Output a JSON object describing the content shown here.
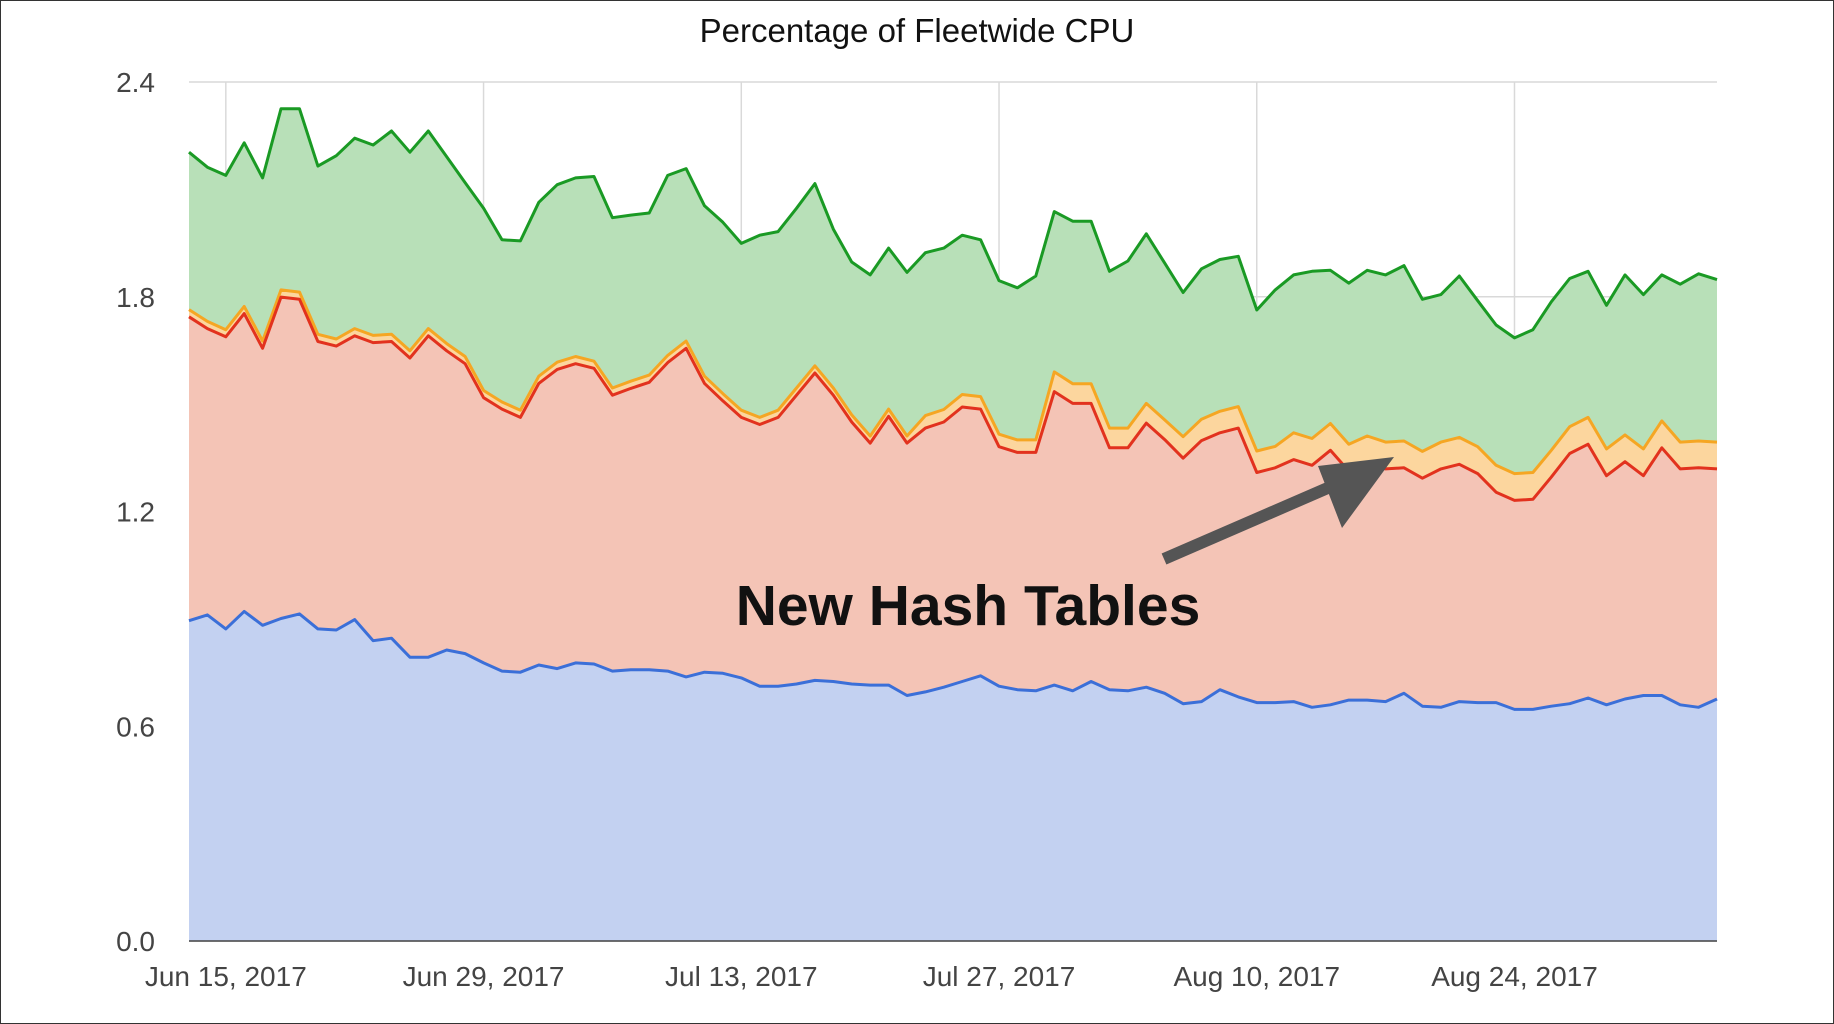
{
  "chart_data": {
    "type": "area",
    "title": "Percentage of Fleetwide CPU",
    "xlabel": "",
    "ylabel": "",
    "ylim": [
      0,
      2.4
    ],
    "xlim": [
      "2017-06-13",
      "2017-09-04"
    ],
    "grid": true,
    "legend": "none",
    "y_ticks": [
      "0.0",
      "0.6",
      "1.2",
      "1.8",
      "2.4"
    ],
    "x_ticks": [
      {
        "date": "2017-06-15",
        "label": "Jun 15, 2017"
      },
      {
        "date": "2017-06-29",
        "label": "Jun 29, 2017"
      },
      {
        "date": "2017-07-13",
        "label": "Jul 13, 2017"
      },
      {
        "date": "2017-07-27",
        "label": "Jul 27, 2017"
      },
      {
        "date": "2017-08-10",
        "label": "Aug 10, 2017"
      },
      {
        "date": "2017-08-24",
        "label": "Aug 24, 2017"
      }
    ],
    "x": [
      "2017-06-13",
      "2017-06-14",
      "2017-06-15",
      "2017-06-16",
      "2017-06-17",
      "2017-06-18",
      "2017-06-19",
      "2017-06-20",
      "2017-06-21",
      "2017-06-22",
      "2017-06-23",
      "2017-06-24",
      "2017-06-25",
      "2017-06-26",
      "2017-06-27",
      "2017-06-28",
      "2017-06-29",
      "2017-06-30",
      "2017-07-01",
      "2017-07-02",
      "2017-07-03",
      "2017-07-04",
      "2017-07-05",
      "2017-07-06",
      "2017-07-07",
      "2017-07-08",
      "2017-07-09",
      "2017-07-10",
      "2017-07-11",
      "2017-07-12",
      "2017-07-13",
      "2017-07-14",
      "2017-07-15",
      "2017-07-16",
      "2017-07-17",
      "2017-07-18",
      "2017-07-19",
      "2017-07-20",
      "2017-07-21",
      "2017-07-22",
      "2017-07-23",
      "2017-07-24",
      "2017-07-25",
      "2017-07-26",
      "2017-07-27",
      "2017-07-28",
      "2017-07-29",
      "2017-07-30",
      "2017-07-31",
      "2017-08-01",
      "2017-08-02",
      "2017-08-03",
      "2017-08-04",
      "2017-08-05",
      "2017-08-06",
      "2017-08-07",
      "2017-08-08",
      "2017-08-09",
      "2017-08-10",
      "2017-08-11",
      "2017-08-12",
      "2017-08-13",
      "2017-08-14",
      "2017-08-15",
      "2017-08-16",
      "2017-08-17",
      "2017-08-18",
      "2017-08-19",
      "2017-08-20",
      "2017-08-21",
      "2017-08-22",
      "2017-08-23",
      "2017-08-24",
      "2017-08-25",
      "2017-08-26",
      "2017-08-27",
      "2017-08-28",
      "2017-08-29",
      "2017-08-30",
      "2017-08-31",
      "2017-09-01",
      "2017-09-02",
      "2017-09-03",
      "2017-09-04"
    ],
    "series": [
      {
        "line_color": "#1a9a24",
        "fill_color": "#b8e0b8",
        "values": [
          2.204,
          2.162,
          2.139,
          2.23,
          2.132,
          2.325,
          2.325,
          2.165,
          2.194,
          2.243,
          2.224,
          2.263,
          2.204,
          2.263,
          2.191,
          2.119,
          2.047,
          1.959,
          1.956,
          2.064,
          2.113,
          2.132,
          2.136,
          2.021,
          2.028,
          2.034,
          2.139,
          2.158,
          2.054,
          2.008,
          1.949,
          1.972,
          1.982,
          2.047,
          2.116,
          1.989,
          1.897,
          1.861,
          1.936,
          1.868,
          1.923,
          1.936,
          1.972,
          1.959,
          1.845,
          1.825,
          1.858,
          2.038,
          2.011,
          2.011,
          1.871,
          1.9,
          1.976,
          1.894,
          1.812,
          1.878,
          1.904,
          1.913,
          1.763,
          1.819,
          1.861,
          1.871,
          1.874,
          1.838,
          1.874,
          1.861,
          1.887,
          1.793,
          1.806,
          1.858,
          1.789,
          1.721,
          1.685,
          1.708,
          1.786,
          1.851,
          1.871,
          1.776,
          1.861,
          1.806,
          1.861,
          1.835,
          1.864,
          1.848
        ]
      },
      {
        "line_color": "#f5a623",
        "fill_color": "#fcd69e",
        "values": [
          1.764,
          1.731,
          1.708,
          1.773,
          1.676,
          1.819,
          1.813,
          1.695,
          1.682,
          1.711,
          1.692,
          1.695,
          1.649,
          1.711,
          1.669,
          1.633,
          1.538,
          1.506,
          1.483,
          1.578,
          1.617,
          1.633,
          1.62,
          1.545,
          1.564,
          1.581,
          1.636,
          1.676,
          1.578,
          1.529,
          1.483,
          1.463,
          1.483,
          1.545,
          1.607,
          1.545,
          1.47,
          1.411,
          1.486,
          1.411,
          1.468,
          1.485,
          1.527,
          1.521,
          1.416,
          1.4,
          1.4,
          1.59,
          1.557,
          1.557,
          1.433,
          1.433,
          1.502,
          1.456,
          1.409,
          1.458,
          1.48,
          1.493,
          1.369,
          1.382,
          1.42,
          1.404,
          1.446,
          1.388,
          1.411,
          1.394,
          1.397,
          1.368,
          1.394,
          1.407,
          1.381,
          1.329,
          1.306,
          1.309,
          1.371,
          1.437,
          1.463,
          1.375,
          1.414,
          1.375,
          1.453,
          1.394,
          1.397,
          1.394
        ]
      },
      {
        "line_color": "#e2321e",
        "fill_color": "#f4c4b6",
        "values": [
          1.744,
          1.711,
          1.688,
          1.753,
          1.656,
          1.799,
          1.793,
          1.675,
          1.662,
          1.691,
          1.672,
          1.675,
          1.629,
          1.691,
          1.649,
          1.613,
          1.518,
          1.486,
          1.463,
          1.558,
          1.597,
          1.613,
          1.6,
          1.525,
          1.544,
          1.561,
          1.616,
          1.656,
          1.558,
          1.509,
          1.463,
          1.443,
          1.463,
          1.525,
          1.587,
          1.525,
          1.45,
          1.391,
          1.466,
          1.391,
          1.433,
          1.45,
          1.492,
          1.486,
          1.381,
          1.365,
          1.365,
          1.535,
          1.502,
          1.502,
          1.378,
          1.378,
          1.447,
          1.401,
          1.349,
          1.398,
          1.42,
          1.433,
          1.309,
          1.322,
          1.345,
          1.329,
          1.371,
          1.313,
          1.336,
          1.319,
          1.322,
          1.293,
          1.319,
          1.332,
          1.306,
          1.254,
          1.231,
          1.234,
          1.296,
          1.362,
          1.388,
          1.3,
          1.339,
          1.3,
          1.378,
          1.319,
          1.322,
          1.319
        ]
      },
      {
        "line_color": "#3b6fd8",
        "fill_color": "#c3d1f1",
        "values": [
          0.895,
          0.911,
          0.872,
          0.921,
          0.882,
          0.901,
          0.914,
          0.872,
          0.869,
          0.898,
          0.839,
          0.846,
          0.793,
          0.793,
          0.813,
          0.803,
          0.777,
          0.754,
          0.751,
          0.771,
          0.761,
          0.777,
          0.774,
          0.754,
          0.758,
          0.758,
          0.754,
          0.738,
          0.751,
          0.748,
          0.735,
          0.712,
          0.712,
          0.718,
          0.728,
          0.725,
          0.718,
          0.715,
          0.715,
          0.686,
          0.696,
          0.709,
          0.725,
          0.741,
          0.712,
          0.702,
          0.699,
          0.715,
          0.699,
          0.725,
          0.702,
          0.699,
          0.709,
          0.692,
          0.663,
          0.669,
          0.702,
          0.682,
          0.666,
          0.666,
          0.669,
          0.653,
          0.66,
          0.673,
          0.673,
          0.669,
          0.692,
          0.656,
          0.653,
          0.669,
          0.666,
          0.666,
          0.647,
          0.647,
          0.656,
          0.663,
          0.679,
          0.66,
          0.676,
          0.686,
          0.686,
          0.66,
          0.653,
          0.676
        ]
      }
    ],
    "annotation": {
      "text": "New Hash Tables",
      "arrow_color": "#555555"
    }
  }
}
